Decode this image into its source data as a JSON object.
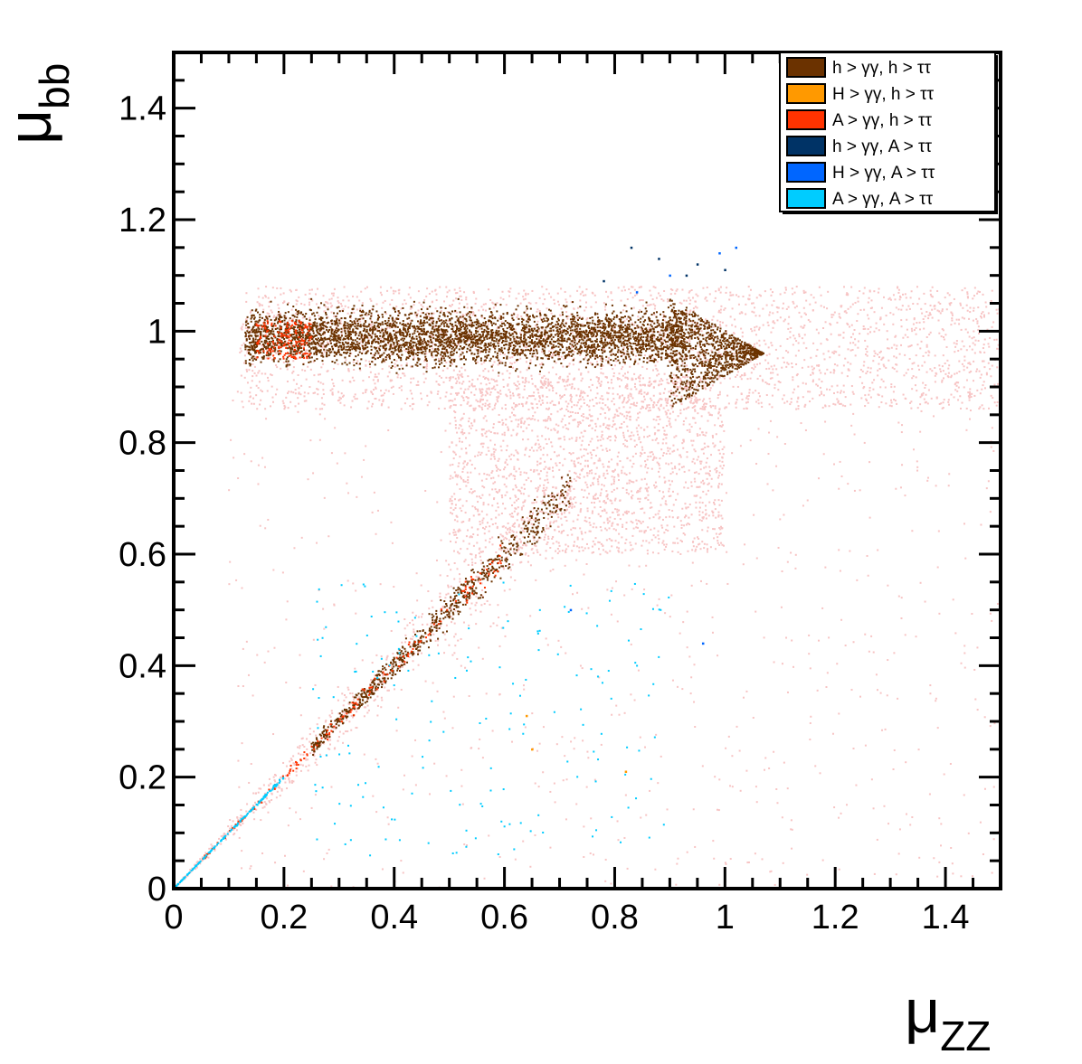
{
  "chart_data": {
    "type": "scatter",
    "xlabel": {
      "symbol": "μ",
      "sub": "ZZ"
    },
    "ylabel": {
      "symbol": "μ",
      "sub": "bb"
    },
    "xlim": [
      0,
      1.5
    ],
    "ylim": [
      0,
      1.5
    ],
    "x_ticks": [
      0,
      0.2,
      0.4,
      0.6,
      0.8,
      1,
      1.2,
      1.4
    ],
    "x_tick_labels": [
      "0",
      "0.2",
      "0.4",
      "0.6",
      "0.8",
      "1",
      "1.2",
      "1.4"
    ],
    "y_ticks": [
      0,
      0.2,
      0.4,
      0.6,
      0.8,
      1,
      1.2,
      1.4
    ],
    "y_tick_labels": [
      "0",
      "0.2",
      "0.4",
      "0.6",
      "0.8",
      "1",
      "1.2",
      "1.4"
    ],
    "grid": false,
    "legend_position": "top-right",
    "background_points": {
      "color": "#f7c4c4",
      "regions": [
        {
          "kind": "box",
          "x": [
            0.12,
            1.5
          ],
          "y": [
            0.86,
            1.08
          ]
        },
        {
          "kind": "box",
          "x": [
            0.5,
            1.0
          ],
          "y": [
            0.6,
            0.92
          ]
        },
        {
          "kind": "diagonal",
          "x": [
            0.0,
            0.9
          ],
          "spread": 0.25
        },
        {
          "kind": "box",
          "x": [
            0.1,
            1.5
          ],
          "y": [
            0.0,
            0.9
          ]
        }
      ]
    },
    "series": [
      {
        "name": "h > γγ, h > ττ",
        "color": "#6b3200",
        "regions": [
          {
            "kind": "band",
            "x": [
              0.13,
              0.93
            ],
            "y": [
              0.92,
              1.06
            ]
          },
          {
            "kind": "wedge",
            "x": [
              0.9,
              1.07
            ],
            "ycenter": 0.96,
            "halfwidth": 0.1
          },
          {
            "kind": "diagonal",
            "x": [
              0.25,
              0.72
            ],
            "spread": 0.08
          }
        ]
      },
      {
        "name": "H > γγ, h > ττ",
        "color": "#ff9900",
        "points": [
          [
            0.65,
            0.25
          ],
          [
            0.82,
            0.21
          ],
          [
            0.64,
            0.31
          ]
        ]
      },
      {
        "name": "A > γγ, h > ττ",
        "color": "#ff3300",
        "regions": [
          {
            "kind": "diagonal",
            "x": [
              0.05,
              0.6
            ],
            "spread": 0.06
          },
          {
            "kind": "box",
            "x": [
              0.15,
              0.25
            ],
            "y": [
              0.95,
              1.02
            ]
          }
        ]
      },
      {
        "name": "h > γγ, A > ττ",
        "color": "#003366",
        "points": [
          [
            0.83,
            1.15
          ],
          [
            0.88,
            1.13
          ],
          [
            0.95,
            1.12
          ],
          [
            1.0,
            1.11
          ],
          [
            0.78,
            1.09
          ],
          [
            0.93,
            1.1
          ]
        ]
      },
      {
        "name": "H > γγ, A > ττ",
        "color": "#0066ff",
        "points": [
          [
            1.02,
            1.15
          ],
          [
            0.99,
            1.14
          ],
          [
            0.9,
            1.1
          ],
          [
            0.84,
            1.07
          ],
          [
            0.96,
            0.44
          ],
          [
            0.72,
            0.5
          ]
        ]
      },
      {
        "name": "A > γγ, A > ττ",
        "color": "#00ccff",
        "regions": [
          {
            "kind": "diagonal",
            "x": [
              0.0,
              0.2
            ],
            "spread": 0.02
          },
          {
            "kind": "box",
            "x": [
              0.25,
              0.9
            ],
            "y": [
              0.05,
              0.55
            ]
          }
        ]
      }
    ]
  }
}
